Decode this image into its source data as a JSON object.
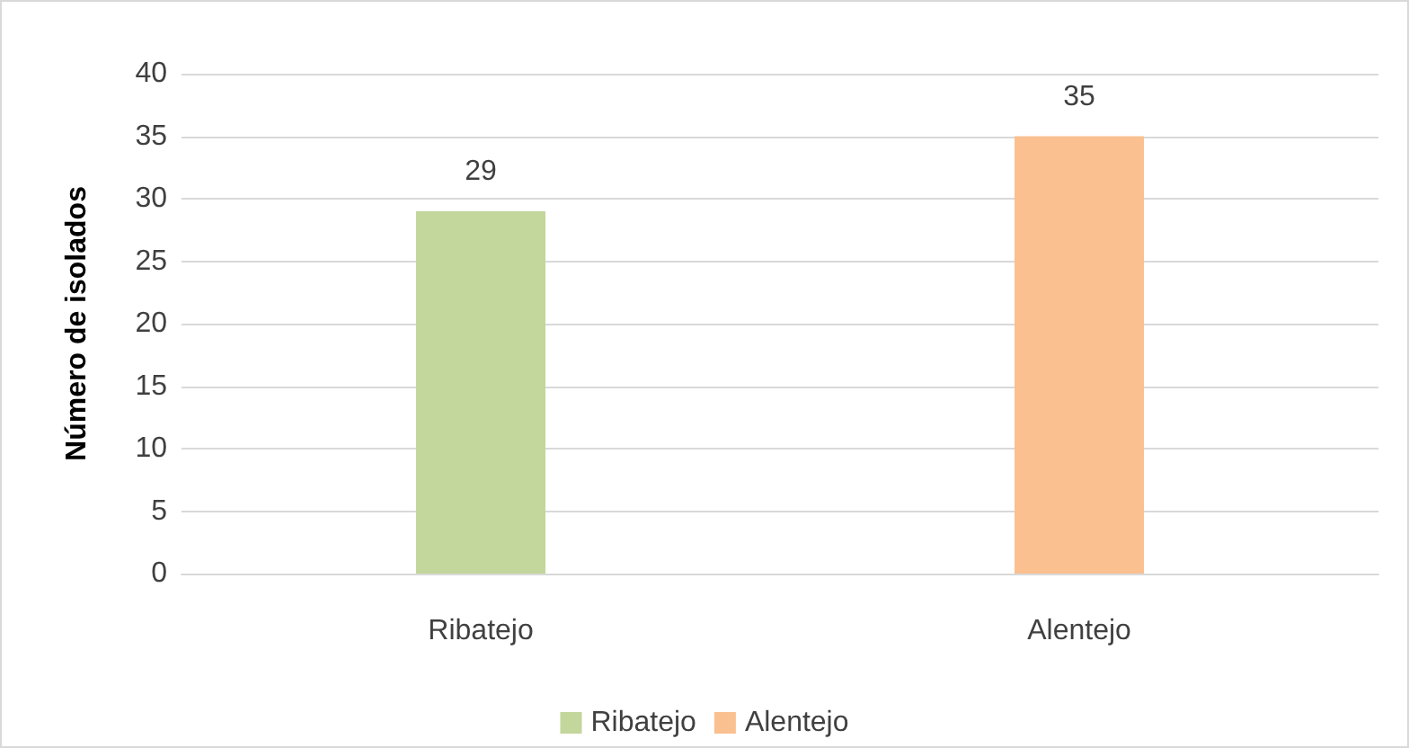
{
  "chart_data": {
    "type": "bar",
    "ylabel": "Número de isolados",
    "categories": [
      "Ribatejo",
      "Alentejo"
    ],
    "series": [
      {
        "name": "Ribatejo",
        "color": "#c3d69b",
        "values": [
          29,
          null
        ]
      },
      {
        "name": "Alentejo",
        "color": "#fac090",
        "values": [
          null,
          35
        ]
      }
    ],
    "ylim": [
      0,
      40
    ],
    "yticks": [
      0,
      5,
      10,
      15,
      20,
      25,
      30,
      35,
      40
    ],
    "grid": "y",
    "legend": "bottom",
    "data_labels": true
  }
}
